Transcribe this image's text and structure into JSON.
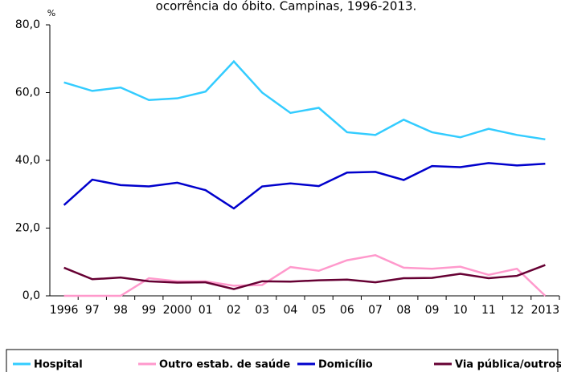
{
  "chart_data": {
    "type": "line",
    "title": "ocorrência do óbito. Campinas, 1996-2013.",
    "y_label": "%",
    "categories": [
      "1996",
      "97",
      "98",
      "99",
      "2000",
      "01",
      "02",
      "03",
      "04",
      "05",
      "06",
      "07",
      "08",
      "09",
      "10",
      "11",
      "12",
      "2013"
    ],
    "series": [
      {
        "name": "Hospital",
        "color": "#33ccff",
        "values": [
          63,
          60.5,
          61.5,
          57.8,
          58.3,
          60.3,
          69.2,
          60,
          54,
          55.5,
          48.3,
          47.5,
          52,
          48.3,
          46.8,
          49.3,
          47.5,
          46.2
        ]
      },
      {
        "name": "Outro estab. de saúde",
        "color": "#ff99cc",
        "values": [
          0,
          0,
          0,
          5.2,
          4.3,
          4.3,
          3,
          3.2,
          8.5,
          7.4,
          10.5,
          12,
          8.3,
          8,
          8.6,
          6.2,
          8,
          0
        ]
      },
      {
        "name": "Domicílio",
        "color": "#0000cc",
        "values": [
          26.8,
          34.3,
          32.7,
          32.3,
          33.4,
          31.2,
          25.8,
          32.3,
          33.2,
          32.4,
          36.4,
          36.6,
          34.2,
          38.3,
          38,
          39.2,
          38.5,
          39
        ]
      },
      {
        "name": "Via pública/outros",
        "color": "#660033",
        "values": [
          8.3,
          4.9,
          5.4,
          4.3,
          3.9,
          4,
          2,
          4.3,
          4.2,
          4.6,
          4.8,
          4,
          5.2,
          5.3,
          6.5,
          5.2,
          5.9,
          9.1
        ]
      }
    ],
    "ylim": [
      0,
      80
    ],
    "yticks": [
      {
        "value": 0,
        "label": "0,0"
      },
      {
        "value": 20,
        "label": "20,0"
      },
      {
        "value": 40,
        "label": "40,0"
      },
      {
        "value": 60,
        "label": "60,0"
      },
      {
        "value": 80,
        "label": "80,0"
      }
    ],
    "grid": false
  }
}
